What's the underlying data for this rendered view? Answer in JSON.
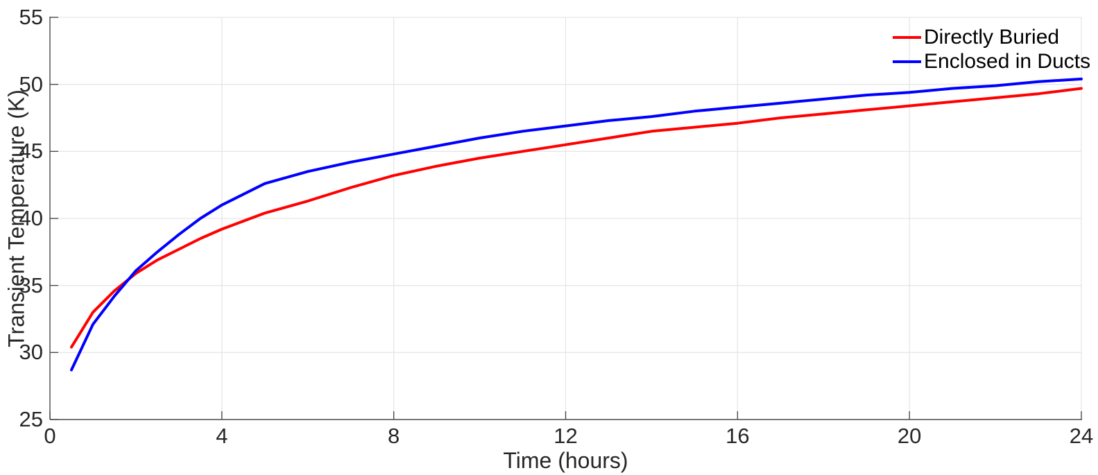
{
  "figure": {
    "background": "#ffffff",
    "axis_color": "#4a4a4a",
    "grid_color": "#e6e6e6",
    "tick_label_color": "#262626"
  },
  "chart_data": {
    "type": "line",
    "title": "",
    "xlabel": "Time (hours)",
    "ylabel": "Transient Temperature (K)",
    "xlim": [
      0,
      24
    ],
    "ylim": [
      25,
      55
    ],
    "xticks": [
      0,
      4,
      8,
      12,
      16,
      20,
      24
    ],
    "yticks": [
      25,
      30,
      35,
      40,
      45,
      50,
      55
    ],
    "grid": true,
    "legend_position": "top-right",
    "x": [
      0.5,
      1,
      1.5,
      2,
      2.5,
      3,
      3.5,
      4,
      5,
      6,
      7,
      8,
      9,
      10,
      11,
      12,
      13,
      14,
      15,
      16,
      17,
      18,
      19,
      20,
      21,
      22,
      23,
      24
    ],
    "series": [
      {
        "name": "Directly Buried",
        "color": "#ff0000",
        "values": [
          30.4,
          33.0,
          34.6,
          35.9,
          36.9,
          37.7,
          38.5,
          39.2,
          40.4,
          41.3,
          42.3,
          43.2,
          43.9,
          44.5,
          45.0,
          45.5,
          46.0,
          46.5,
          46.8,
          47.1,
          47.5,
          47.8,
          48.1,
          48.4,
          48.7,
          49.0,
          49.3,
          49.7
        ]
      },
      {
        "name": "Enclosed in Ducts",
        "color": "#0000ff",
        "values": [
          28.7,
          32.1,
          34.2,
          36.1,
          37.5,
          38.8,
          40.0,
          41.0,
          42.6,
          43.5,
          44.2,
          44.8,
          45.4,
          46.0,
          46.5,
          46.9,
          47.3,
          47.6,
          48.0,
          48.3,
          48.6,
          48.9,
          49.2,
          49.4,
          49.7,
          49.9,
          50.2,
          50.4
        ]
      }
    ]
  }
}
